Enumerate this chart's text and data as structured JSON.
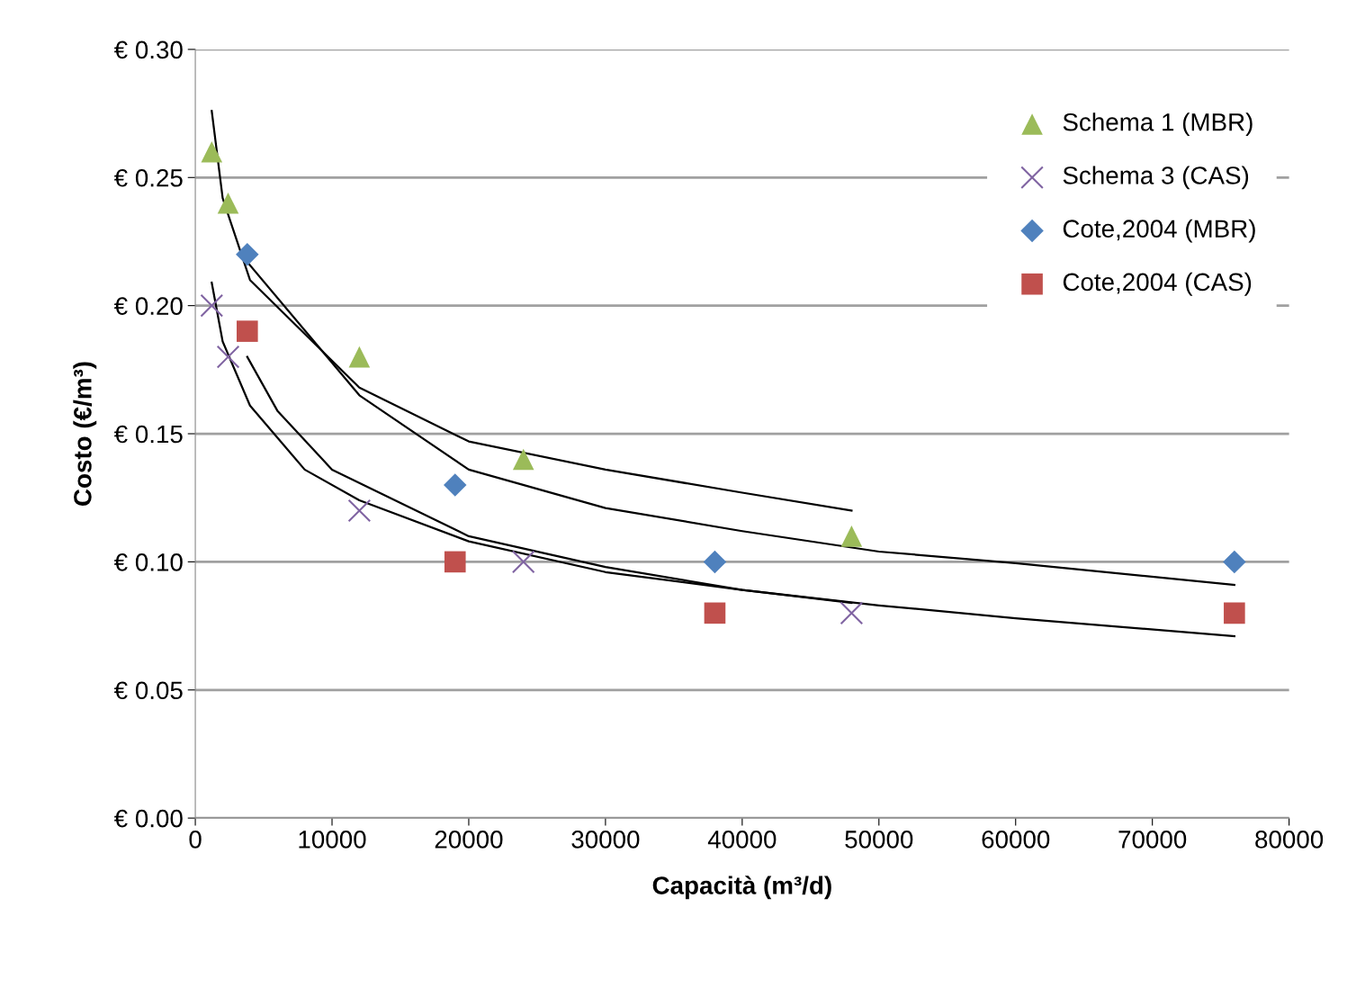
{
  "chart_data": {
    "type": "scatter",
    "xlabel": "Capacità (m³/d)",
    "ylabel": "Costo (€/m³)",
    "xlim": [
      0,
      80000
    ],
    "xticks": [
      0,
      10000,
      20000,
      30000,
      40000,
      50000,
      60000,
      70000,
      80000
    ],
    "ylim": [
      0,
      0.3
    ],
    "yticks": [
      {
        "value": 0,
        "label": "€ 0.00"
      },
      {
        "value": 0.05,
        "label": "€ 0.05"
      },
      {
        "value": 0.1,
        "label": "€ 0.10"
      },
      {
        "value": 0.15,
        "label": "€ 0.15"
      },
      {
        "value": 0.2,
        "label": "€ 0.20"
      },
      {
        "value": 0.25,
        "label": "€ 0.25"
      },
      {
        "value": 0.3,
        "label": "€ 0.30"
      }
    ],
    "grid": "y",
    "legend": "top right",
    "series": [
      {
        "name": "Schema 1 (MBR)",
        "color": "#9bbb59",
        "marker": "triangle",
        "x": [
          1200,
          2400,
          12000,
          24000,
          48000
        ],
        "values": [
          0.26,
          0.24,
          0.18,
          0.14,
          0.11
        ]
      },
      {
        "name": "Schema 3 (CAS)",
        "color": "#8064a2",
        "marker": "cross",
        "x": [
          1200,
          2400,
          12000,
          24000,
          48000
        ],
        "values": [
          0.2,
          0.18,
          0.12,
          0.1,
          0.08
        ]
      },
      {
        "name": "Cote,2004 (MBR)",
        "color": "#4f81bd",
        "marker": "diamond",
        "x": [
          3800,
          19000,
          38000,
          76000
        ],
        "values": [
          0.22,
          0.13,
          0.1,
          0.1
        ]
      },
      {
        "name": "Cote,2004 (CAS)",
        "color": "#c0504d",
        "marker": "square",
        "x": [
          3800,
          19000,
          38000,
          76000
        ],
        "values": [
          0.19,
          0.1,
          0.08,
          0.08
        ]
      },
      {
        "type": "line",
        "color": "#000000",
        "x": [
          1200,
          2000,
          4000,
          12000,
          20000,
          30000,
          40000,
          48000
        ],
        "values": [
          0.276,
          0.242,
          0.21,
          0.168,
          0.147,
          0.136,
          0.127,
          0.12
        ]
      },
      {
        "type": "line",
        "color": "#000000",
        "x": [
          3800,
          12000,
          20000,
          30000,
          40000,
          50000,
          60000,
          76000
        ],
        "values": [
          0.217,
          0.165,
          0.136,
          0.121,
          0.112,
          0.104,
          0.0995,
          0.091
        ]
      },
      {
        "type": "line",
        "color": "#000000",
        "x": [
          1200,
          2000,
          4000,
          8000,
          12000,
          20000,
          30000,
          40000,
          48000
        ],
        "values": [
          0.209,
          0.186,
          0.161,
          0.136,
          0.124,
          0.108,
          0.096,
          0.089,
          0.084
        ]
      },
      {
        "type": "line",
        "color": "#000000",
        "x": [
          3800,
          6000,
          10000,
          20000,
          30000,
          40000,
          50000,
          60000,
          76000
        ],
        "values": [
          0.18,
          0.159,
          0.136,
          0.11,
          0.098,
          0.089,
          0.083,
          0.078,
          0.071
        ]
      }
    ]
  }
}
